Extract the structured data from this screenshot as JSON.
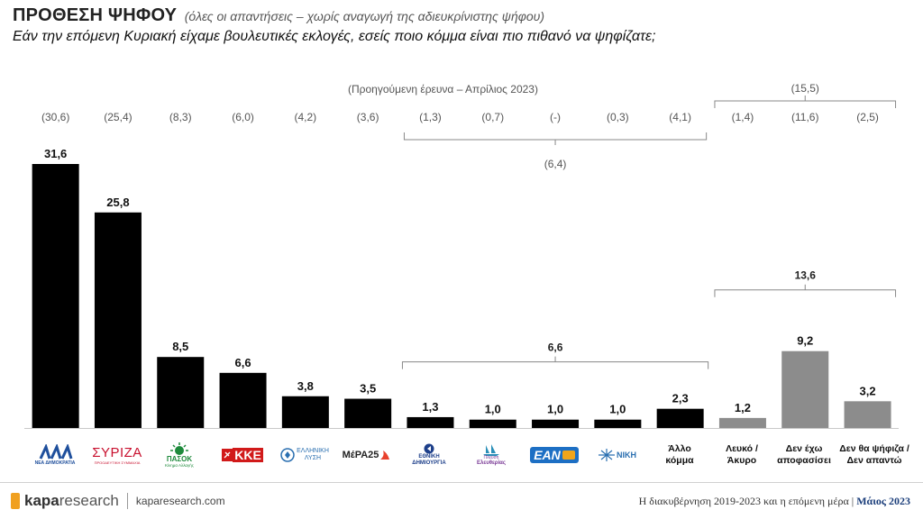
{
  "header": {
    "title": "ΠΡΟΘΕΣΗ ΨΗΦΟΥ",
    "subtitle": "(όλες οι απαντήσεις – χωρίς αναγωγή της αδιευκρίνιστης ψήφου)",
    "question": "Εάν την επόμενη Κυριακή είχαμε βουλευτικές εκλογές, εσείς ποιο κόμμα είναι πιο πιθανό να ψηφίζατε;"
  },
  "previous_label": "(Προηγούμενη έρευνα – Απρίλιος 2023)",
  "chart_data": {
    "type": "bar",
    "categories": [
      "ΝΔ",
      "ΣΥΡΙΖΑ",
      "ΠΑΣΟΚ",
      "ΚΚΕ",
      "ΕΛΛΗΝΙΚΗ ΛΥΣΗ",
      "ΜέΡΑ25",
      "ΕΘΝΙΚΗ ΔΗΜΙΟΥΡΓΙΑ",
      "Πλεύση Ελευθερίας",
      "ΕΑΝ",
      "ΝΙΚΗ",
      "Άλλο κόμμα",
      "Λευκό / Άκυρο",
      "Δεν έχω αποφασίσει",
      "Δεν θα ψήφιζα / Δεν απαντώ"
    ],
    "values": [
      31.6,
      25.8,
      8.5,
      6.6,
      3.8,
      3.5,
      1.3,
      1.0,
      1.0,
      1.0,
      2.3,
      1.2,
      9.2,
      3.2
    ],
    "value_labels": [
      "31,6",
      "25,8",
      "8,5",
      "6,6",
      "3,8",
      "3,5",
      "1,3",
      "1,0",
      "1,0",
      "1,0",
      "2,3",
      "1,2",
      "9,2",
      "3,2"
    ],
    "previous_labels": [
      "(30,6)",
      "(25,4)",
      "(8,3)",
      "(6,0)",
      "(4,2)",
      "(3,6)",
      "(1,3)",
      "(0,7)",
      "(-)",
      "(0,3)",
      "(4,1)",
      "(1,4)",
      "(11,6)",
      "(2,5)"
    ],
    "bar_colors": [
      "#000000",
      "#000000",
      "#000000",
      "#000000",
      "#000000",
      "#000000",
      "#000000",
      "#000000",
      "#000000",
      "#000000",
      "#000000",
      "#8c8c8c",
      "#8c8c8c",
      "#8c8c8c"
    ],
    "groups": [
      {
        "from": 6,
        "to": 10,
        "current": "6,6",
        "previous": "(6,4)"
      },
      {
        "from": 11,
        "to": 13,
        "current": "13,6",
        "previous": "(15,5)"
      }
    ],
    "ylim": [
      0,
      32
    ]
  },
  "party_logos": {
    "nd": "ΝΕΑ ΔΗΜΟΚΡΑΤΙΑ",
    "syriza": "ΣΥΡΙΖΑ",
    "syriza_sub": "ΠΡΟΟΔΕΥΤΙΚΗ ΣΥΜΜΑΧΙΑ",
    "pasok": "ΠΑΣΟΚ",
    "pasok_sub": "Κίνημα Αλλαγής",
    "kke": "ΚΚΕ",
    "el_lysi_1": "ΕΛΛΗΝΙΚΗ",
    "el_lysi_2": "ΛΥΣΗ",
    "mera25": "ΜέΡΑ25",
    "ethniki_1": "ΕΘΝΙΚΗ",
    "ethniki_2": "ΔΗΜΙΟΥΡΓΙΑ",
    "plefsi_1": "Πλεύση",
    "plefsi_2": "Ελευθερίας",
    "ean": "ΕΑΝ",
    "niki": "ΝΙΚΗ",
    "allo_1": "Άλλο",
    "allo_2": "κόμμα",
    "lefko_1": "Λευκό /",
    "lefko_2": "Άκυρο",
    "den_exo_1": "Δεν έχω",
    "den_exo_2": "αποφασίσει",
    "den_tha_1": "Δεν θα ψήφιζα /",
    "den_tha_2": "Δεν απαντώ"
  },
  "footer": {
    "brand_bold": "kapa",
    "brand_light": "research",
    "site": "kaparesearch.com",
    "right_text": "Η διακυβέρνηση 2019-2023 και η επόμενη μέρα | ",
    "right_date": "Μάιος 2023"
  }
}
